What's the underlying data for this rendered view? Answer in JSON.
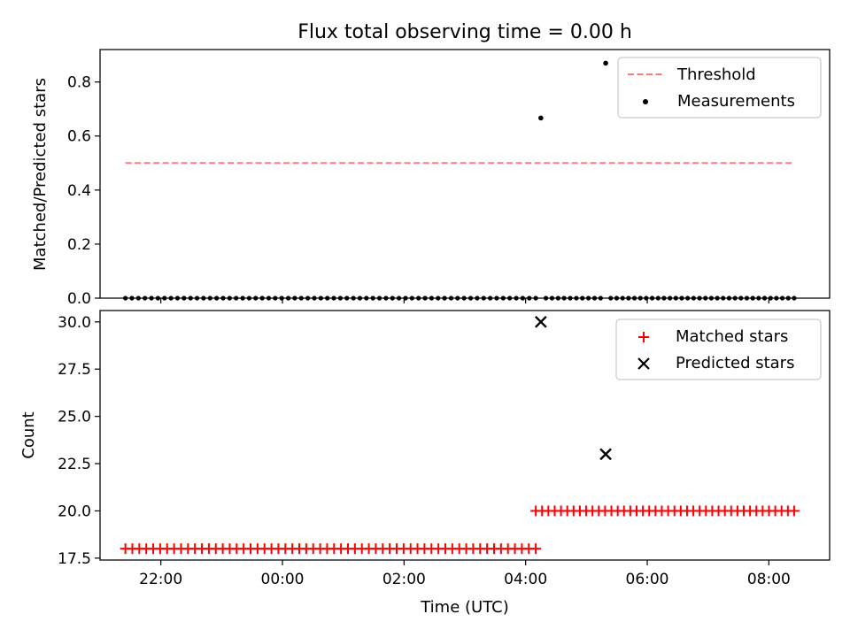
{
  "figure": {
    "title": "Flux total observing time = 0.00 h"
  },
  "chart_data": [
    {
      "type": "scatter",
      "panel": "top",
      "xlabel": "",
      "ylabel": "Matched/Predicted stars",
      "xlim": [
        "21:00",
        "09:00"
      ],
      "ylim": [
        0,
        0.92
      ],
      "yticks": [
        "0.0",
        "0.2",
        "0.4",
        "0.6",
        "0.8"
      ],
      "grid": false,
      "legend": "upper right",
      "threshold": {
        "name": "Threshold",
        "value": 0.5,
        "x_start": "21:25",
        "x_end": "08:25",
        "color": "#ff7b7b",
        "style": "dashed"
      },
      "series": [
        {
          "name": "Measurements",
          "color": "#000000",
          "marker": "dot",
          "points": [
            {
              "x": "04:15",
              "y": 0.6667
            },
            {
              "x": "05:19",
              "y": 0.8696
            }
          ],
          "zero_runs": [
            {
              "x_start": "21:25",
              "x_end": "04:10",
              "count": 64,
              "y": 0
            },
            {
              "x_start": "04:20",
              "x_end": "05:14",
              "count": 10,
              "y": 0
            },
            {
              "x_start": "05:24",
              "x_end": "08:25",
              "count": 32,
              "y": 0
            }
          ]
        }
      ]
    },
    {
      "type": "scatter",
      "panel": "bottom",
      "xlabel": "Time (UTC)",
      "ylabel": "Count",
      "xlim": [
        "21:00",
        "09:00"
      ],
      "xticks": [
        "22:00",
        "00:00",
        "02:00",
        "04:00",
        "06:00",
        "08:00"
      ],
      "ylim": [
        17.4,
        30.6
      ],
      "yticks": [
        "17.5",
        "20.0",
        "22.5",
        "25.0",
        "27.5",
        "30.0"
      ],
      "grid": false,
      "legend": "upper right",
      "series": [
        {
          "name": "Matched stars",
          "color": "#ff0000",
          "marker": "plus",
          "runs": [
            {
              "x_start": "21:25",
              "x_end": "04:10",
              "count": 60,
              "y": 18
            },
            {
              "x_start": "04:10",
              "x_end": "08:25",
              "count": 42,
              "y": 20
            }
          ]
        },
        {
          "name": "Predicted stars",
          "color": "#000000",
          "marker": "x",
          "points": [
            {
              "x": "04:15",
              "y": 30
            },
            {
              "x": "05:19",
              "y": 23
            }
          ]
        }
      ]
    }
  ]
}
